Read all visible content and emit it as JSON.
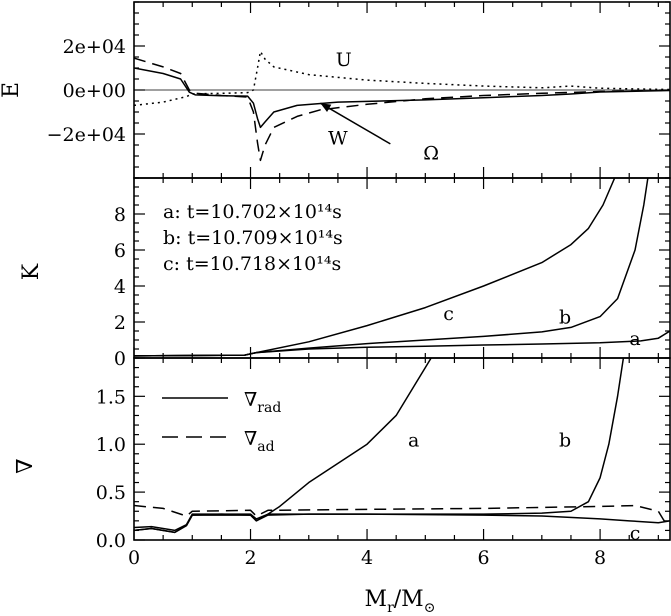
{
  "chart_data": [
    {
      "type": "line",
      "panel": "energy",
      "ylabel": "E",
      "xlim": [
        0,
        9.2
      ],
      "ylim": [
        -40000,
        40000
      ],
      "yticks": [
        -20000,
        0,
        20000
      ],
      "ytick_labels": [
        "−2e+04",
        "0e+00",
        "2e+04"
      ],
      "series": [
        {
          "name": "U",
          "style": "dotted",
          "points": [
            [
              0,
              -7000
            ],
            [
              0.5,
              -5500
            ],
            [
              0.9,
              -3000
            ],
            [
              1.0,
              -1800
            ],
            [
              1.5,
              -1500
            ],
            [
              1.95,
              -1200
            ],
            [
              2.05,
              0
            ],
            [
              2.12,
              10000
            ],
            [
              2.17,
              17500
            ],
            [
              2.25,
              14000
            ],
            [
              2.4,
              10500
            ],
            [
              3,
              7000
            ],
            [
              4,
              4500
            ],
            [
              5,
              3000
            ],
            [
              6,
              1800
            ],
            [
              7,
              1000
            ],
            [
              7.5,
              1800
            ],
            [
              8,
              800
            ],
            [
              9.2,
              200
            ]
          ]
        },
        {
          "name": "W",
          "style": "solid",
          "points": [
            [
              0,
              10000
            ],
            [
              0.5,
              7500
            ],
            [
              0.8,
              5000
            ],
            [
              0.95,
              -1000
            ],
            [
              1.05,
              -2200
            ],
            [
              1.5,
              -2600
            ],
            [
              1.95,
              -2800
            ],
            [
              2.05,
              -6000
            ],
            [
              2.12,
              -13000
            ],
            [
              2.17,
              -17000
            ],
            [
              2.25,
              -14500
            ],
            [
              2.4,
              -10000
            ],
            [
              2.8,
              -7000
            ],
            [
              3.5,
              -5500
            ],
            [
              5,
              -4500
            ],
            [
              6,
              -3500
            ],
            [
              7,
              -2500
            ],
            [
              7.5,
              -1800
            ],
            [
              8,
              -900
            ],
            [
              9.2,
              -200
            ]
          ]
        },
        {
          "name": "Ω",
          "style": "dashed",
          "points": [
            [
              0,
              14500
            ],
            [
              0.5,
              10500
            ],
            [
              0.8,
              7500
            ],
            [
              0.95,
              0
            ],
            [
              1.05,
              -1500
            ],
            [
              1.5,
              -2500
            ],
            [
              1.95,
              -3200
            ],
            [
              2.05,
              -10000
            ],
            [
              2.12,
              -24000
            ],
            [
              2.17,
              -32000
            ],
            [
              2.25,
              -25000
            ],
            [
              2.4,
              -17000
            ],
            [
              2.8,
              -12000
            ],
            [
              3.2,
              -9000
            ],
            [
              4,
              -6500
            ],
            [
              5,
              -4000
            ],
            [
              6,
              -2500
            ],
            [
              7,
              -1500
            ],
            [
              8,
              -700
            ],
            [
              9.2,
              -100
            ]
          ]
        }
      ],
      "annotations": [
        {
          "text": "U",
          "x": 3.6,
          "y": 14000
        },
        {
          "text": "W",
          "x": 3.5,
          "y": -21500
        },
        {
          "text": "Ω",
          "x": 5.1,
          "y": -28500
        }
      ],
      "arrow": {
        "from": [
          4.4,
          -24500
        ],
        "to": [
          3.2,
          -6000
        ]
      }
    },
    {
      "type": "line",
      "panel": "K",
      "ylabel": "K",
      "xlim": [
        0,
        9.2
      ],
      "ylim": [
        0,
        10
      ],
      "yticks": [
        0,
        2,
        4,
        6,
        8
      ],
      "ytick_labels": [
        "0",
        "2",
        "4",
        "6",
        "8"
      ],
      "legend_text": [
        "a: t=10.702×10¹⁴s",
        "b: t=10.709×10¹⁴s",
        "c: t=10.718×10¹⁴s"
      ],
      "series": [
        {
          "name": "a",
          "points": [
            [
              0,
              0.12
            ],
            [
              1,
              0.14
            ],
            [
              1.9,
              0.16
            ],
            [
              2.1,
              0.3
            ],
            [
              3,
              0.5
            ],
            [
              4,
              0.6
            ],
            [
              5,
              0.65
            ],
            [
              6,
              0.72
            ],
            [
              7,
              0.78
            ],
            [
              8,
              0.85
            ],
            [
              8.7,
              0.95
            ],
            [
              9,
              1.1
            ],
            [
              9.2,
              1.5
            ]
          ]
        },
        {
          "name": "b",
          "points": [
            [
              0,
              0.12
            ],
            [
              1,
              0.14
            ],
            [
              1.9,
              0.16
            ],
            [
              2.1,
              0.3
            ],
            [
              3,
              0.55
            ],
            [
              4,
              0.8
            ],
            [
              5,
              1.0
            ],
            [
              6,
              1.2
            ],
            [
              7,
              1.45
            ],
            [
              7.5,
              1.7
            ],
            [
              8,
              2.3
            ],
            [
              8.3,
              3.3
            ],
            [
              8.6,
              6
            ],
            [
              8.75,
              8.5
            ],
            [
              8.82,
              10
            ]
          ]
        },
        {
          "name": "c",
          "points": [
            [
              0,
              0.12
            ],
            [
              1,
              0.14
            ],
            [
              1.9,
              0.16
            ],
            [
              2.1,
              0.3
            ],
            [
              3,
              0.9
            ],
            [
              4,
              1.8
            ],
            [
              5,
              2.8
            ],
            [
              6,
              4
            ],
            [
              7,
              5.3
            ],
            [
              7.5,
              6.3
            ],
            [
              7.8,
              7.2
            ],
            [
              8.05,
              8.5
            ],
            [
              8.25,
              10
            ]
          ]
        }
      ],
      "annotations": [
        {
          "text": "a",
          "x": 8.6,
          "y": 1.1
        },
        {
          "text": "b",
          "x": 7.4,
          "y": 2.3
        },
        {
          "text": "c",
          "x": 5.4,
          "y": 2.5
        }
      ]
    },
    {
      "type": "line",
      "panel": "nabla",
      "ylabel": "∇",
      "xlabel_main": "M",
      "xlabel_sub": "r",
      "xlabel_mid": "/M",
      "xlabel_sub2": "⊙",
      "xlim": [
        0,
        9.2
      ],
      "ylim": [
        0,
        1.9
      ],
      "xticks": [
        0,
        2,
        4,
        6,
        8
      ],
      "xtick_labels": [
        "0",
        "2",
        "4",
        "6",
        "8"
      ],
      "yticks": [
        0,
        0.5,
        1.0,
        1.5
      ],
      "ytick_labels": [
        "0.0",
        "0.5",
        "1.0",
        "1.5"
      ],
      "legend": [
        {
          "label": "∇",
          "sub": "rad",
          "style": "solid"
        },
        {
          "label": "∇",
          "sub": "ad",
          "style": "dashed"
        }
      ],
      "series": [
        {
          "name": "rad a",
          "style": "solid",
          "points": [
            [
              0,
              0.1
            ],
            [
              0.3,
              0.12
            ],
            [
              0.7,
              0.08
            ],
            [
              0.9,
              0.15
            ],
            [
              1.0,
              0.26
            ],
            [
              1.5,
              0.27
            ],
            [
              2.0,
              0.26
            ],
            [
              2.1,
              0.2
            ],
            [
              2.3,
              0.27
            ],
            [
              2.5,
              0.35
            ],
            [
              3,
              0.6
            ],
            [
              3.5,
              0.8
            ],
            [
              4,
              1.0
            ],
            [
              4.5,
              1.3
            ],
            [
              4.8,
              1.6
            ],
            [
              5.0,
              1.8
            ],
            [
              5.1,
              1.9
            ]
          ]
        },
        {
          "name": "rad b",
          "style": "solid",
          "points": [
            [
              0,
              0.1
            ],
            [
              0.3,
              0.12
            ],
            [
              0.7,
              0.08
            ],
            [
              0.9,
              0.15
            ],
            [
              1.0,
              0.26
            ],
            [
              2.0,
              0.26
            ],
            [
              2.1,
              0.2
            ],
            [
              2.3,
              0.26
            ],
            [
              3,
              0.27
            ],
            [
              4,
              0.27
            ],
            [
              5,
              0.27
            ],
            [
              6,
              0.27
            ],
            [
              7,
              0.28
            ],
            [
              7.5,
              0.3
            ],
            [
              7.8,
              0.4
            ],
            [
              8.0,
              0.65
            ],
            [
              8.15,
              1.0
            ],
            [
              8.3,
              1.5
            ],
            [
              8.4,
              1.9
            ]
          ]
        },
        {
          "name": "rad c",
          "style": "solid",
          "points": [
            [
              0,
              0.13
            ],
            [
              0.3,
              0.14
            ],
            [
              0.7,
              0.1
            ],
            [
              0.9,
              0.16
            ],
            [
              1.0,
              0.27
            ],
            [
              2.0,
              0.27
            ],
            [
              2.1,
              0.22
            ],
            [
              2.3,
              0.27
            ],
            [
              4,
              0.27
            ],
            [
              6,
              0.26
            ],
            [
              7,
              0.25
            ],
            [
              8,
              0.22
            ],
            [
              8.5,
              0.2
            ],
            [
              9,
              0.18
            ],
            [
              9.2,
              0.2
            ]
          ]
        },
        {
          "name": "ad",
          "style": "dashed",
          "points": [
            [
              0,
              0.36
            ],
            [
              0.5,
              0.33
            ],
            [
              0.9,
              0.25
            ],
            [
              1.0,
              0.3
            ],
            [
              2.0,
              0.31
            ],
            [
              2.1,
              0.25
            ],
            [
              2.3,
              0.31
            ],
            [
              4,
              0.32
            ],
            [
              6,
              0.33
            ],
            [
              7,
              0.34
            ],
            [
              8,
              0.35
            ],
            [
              8.6,
              0.36
            ],
            [
              9,
              0.3
            ],
            [
              9.1,
              0.2
            ],
            [
              9.2,
              0.25
            ]
          ]
        }
      ],
      "annotations": [
        {
          "text": "a",
          "x": 4.8,
          "y": 1.05
        },
        {
          "text": "b",
          "x": 7.4,
          "y": 1.05
        },
        {
          "text": "c",
          "x": 8.6,
          "y": 0.08
        }
      ]
    }
  ]
}
